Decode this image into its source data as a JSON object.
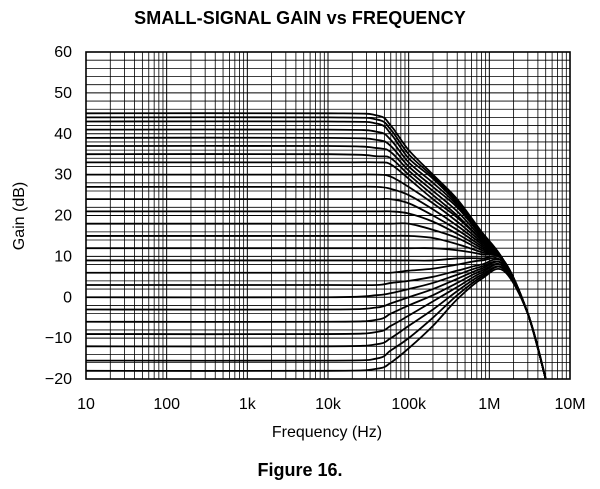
{
  "chart_data": {
    "type": "line",
    "title": "SMALL-SIGNAL GAIN vs FREQUENCY",
    "caption": "Figure 16.",
    "xlabel": "Frequency (Hz)",
    "ylabel": "Gain (dB)",
    "x_scale": "log",
    "xlim": [
      10,
      10000000
    ],
    "ylim": [
      -20,
      60
    ],
    "x_ticks": [
      {
        "value": 10,
        "label": "10"
      },
      {
        "value": 100,
        "label": "100"
      },
      {
        "value": 1000,
        "label": "1k"
      },
      {
        "value": 10000,
        "label": "10k"
      },
      {
        "value": 100000,
        "label": "100k"
      },
      {
        "value": 1000000,
        "label": "1M"
      },
      {
        "value": 10000000,
        "label": "10M"
      }
    ],
    "y_ticks": [
      {
        "value": 60,
        "label": "60"
      },
      {
        "value": 50,
        "label": "50"
      },
      {
        "value": 40,
        "label": "40"
      },
      {
        "value": 30,
        "label": "30"
      },
      {
        "value": 20,
        "label": "20"
      },
      {
        "value": 10,
        "label": "10"
      },
      {
        "value": 0,
        "label": "0"
      },
      {
        "value": -10,
        "label": "−10"
      },
      {
        "value": -20,
        "label": "−20"
      }
    ],
    "grid": true,
    "series": [
      {
        "x": [
          10,
          10000,
          40000,
          60000,
          100000,
          200000,
          400000,
          800000,
          1500000,
          3000000,
          5000000
        ],
        "y": [
          45,
          45,
          44.5,
          42,
          36,
          30,
          24,
          16,
          9,
          -4,
          -20
        ]
      },
      {
        "x": [
          10,
          10000,
          40000,
          60000,
          100000,
          200000,
          400000,
          800000,
          1500000,
          3000000,
          5000000
        ],
        "y": [
          44,
          44,
          43.5,
          41,
          35,
          29.5,
          23.5,
          16,
          9,
          -4,
          -20
        ]
      },
      {
        "x": [
          10,
          10000,
          40000,
          60000,
          100000,
          200000,
          400000,
          800000,
          1500000,
          3000000,
          5000000
        ],
        "y": [
          43,
          43,
          42.5,
          40,
          34,
          29,
          23,
          15.5,
          9,
          -4,
          -20
        ]
      },
      {
        "x": [
          10,
          10000,
          40000,
          60000,
          100000,
          200000,
          400000,
          800000,
          1500000,
          3000000,
          5000000
        ],
        "y": [
          41,
          41,
          40.5,
          38.5,
          33,
          28,
          22.5,
          15,
          9,
          -4,
          -20
        ]
      },
      {
        "x": [
          10,
          10000,
          40000,
          60000,
          100000,
          200000,
          400000,
          800000,
          1500000,
          3000000,
          5000000
        ],
        "y": [
          39,
          39,
          38.5,
          37,
          32,
          27,
          22,
          15,
          9,
          -4,
          -20
        ]
      },
      {
        "x": [
          10,
          10000,
          40000,
          60000,
          100000,
          200000,
          400000,
          800000,
          1500000,
          3000000,
          5000000
        ],
        "y": [
          37,
          37,
          36.5,
          35.5,
          31,
          26,
          21,
          14.5,
          9,
          -4,
          -20
        ]
      },
      {
        "x": [
          10,
          10000,
          40000,
          60000,
          100000,
          200000,
          400000,
          800000,
          1500000,
          3000000,
          5000000
        ],
        "y": [
          35,
          35,
          34.5,
          34,
          30,
          25,
          20,
          14,
          9,
          -4,
          -20
        ]
      },
      {
        "x": [
          10,
          10000,
          40000,
          60000,
          100000,
          200000,
          400000,
          800000,
          1500000,
          3000000,
          5000000
        ],
        "y": [
          33,
          33,
          33,
          32.5,
          29,
          24,
          19.5,
          14,
          9,
          -4,
          -20
        ]
      },
      {
        "x": [
          10,
          10000,
          40000,
          60000,
          100000,
          200000,
          400000,
          800000,
          1500000,
          3000000,
          5000000
        ],
        "y": [
          30,
          30,
          30,
          29.5,
          27,
          23,
          18.5,
          13.5,
          9,
          -4,
          -20
        ]
      },
      {
        "x": [
          10,
          10000,
          40000,
          60000,
          100000,
          200000,
          400000,
          800000,
          1500000,
          3000000,
          5000000
        ],
        "y": [
          27,
          27,
          27,
          26.5,
          25,
          21.5,
          17.5,
          13,
          9,
          -4,
          -20
        ]
      },
      {
        "x": [
          10,
          10000,
          40000,
          60000,
          100000,
          200000,
          400000,
          800000,
          1500000,
          3000000,
          5000000
        ],
        "y": [
          24,
          24,
          24,
          24,
          23,
          20,
          16.5,
          12.5,
          9,
          -4,
          -20
        ]
      },
      {
        "x": [
          10,
          10000,
          40000,
          60000,
          100000,
          200000,
          400000,
          800000,
          1500000,
          3000000,
          5000000
        ],
        "y": [
          21,
          21,
          21,
          21,
          20.5,
          18.5,
          15.5,
          12,
          9,
          -4,
          -20
        ]
      },
      {
        "x": [
          10,
          10000,
          40000,
          60000,
          100000,
          200000,
          400000,
          800000,
          1500000,
          3000000,
          5000000
        ],
        "y": [
          18,
          18,
          18,
          18,
          18,
          16.5,
          14.5,
          11.5,
          9,
          -4,
          -20
        ]
      },
      {
        "x": [
          10,
          10000,
          40000,
          60000,
          100000,
          200000,
          400000,
          800000,
          1500000,
          3000000,
          5000000
        ],
        "y": [
          15,
          15,
          15,
          15,
          15,
          14.5,
          13,
          11,
          9,
          -4,
          -20
        ]
      },
      {
        "x": [
          10,
          10000,
          40000,
          60000,
          100000,
          200000,
          400000,
          800000,
          1500000,
          3000000,
          5000000
        ],
        "y": [
          12,
          12,
          12,
          12,
          12,
          12,
          11.5,
          10.5,
          9,
          -4,
          -20
        ]
      },
      {
        "x": [
          10,
          10000,
          40000,
          60000,
          100000,
          200000,
          400000,
          800000,
          1500000,
          3000000,
          5000000
        ],
        "y": [
          9,
          9,
          9,
          9,
          9,
          9,
          9.5,
          9.5,
          9,
          -4,
          -20
        ]
      },
      {
        "x": [
          10,
          10000,
          40000,
          60000,
          100000,
          200000,
          400000,
          800000,
          1500000,
          3000000,
          5000000
        ],
        "y": [
          6,
          6,
          6,
          6,
          6.5,
          7,
          8,
          9,
          8.5,
          -4,
          -20
        ]
      },
      {
        "x": [
          10,
          10000,
          40000,
          60000,
          100000,
          200000,
          400000,
          800000,
          1500000,
          3000000,
          5000000
        ],
        "y": [
          3,
          3,
          3,
          3.5,
          4,
          5,
          6.5,
          8,
          8.5,
          -4,
          -20
        ]
      },
      {
        "x": [
          10,
          10000,
          40000,
          60000,
          100000,
          200000,
          400000,
          800000,
          1500000,
          3000000,
          5000000
        ],
        "y": [
          0,
          0,
          0.5,
          1,
          2,
          3.5,
          5.5,
          7.5,
          8,
          -4,
          -20
        ]
      },
      {
        "x": [
          10,
          10000,
          40000,
          60000,
          100000,
          200000,
          400000,
          800000,
          1500000,
          3000000,
          5000000
        ],
        "y": [
          -3,
          -3,
          -2.5,
          -1.5,
          0,
          2,
          4.5,
          7,
          8,
          -4,
          -20
        ]
      },
      {
        "x": [
          10,
          10000,
          40000,
          60000,
          100000,
          200000,
          400000,
          800000,
          1500000,
          3000000,
          5000000
        ],
        "y": [
          -6,
          -6,
          -5.5,
          -4,
          -2,
          0.5,
          3.5,
          6.5,
          7.5,
          -4,
          -20
        ]
      },
      {
        "x": [
          10,
          10000,
          40000,
          60000,
          100000,
          200000,
          400000,
          800000,
          1500000,
          3000000,
          5000000
        ],
        "y": [
          -9,
          -9,
          -8.5,
          -7,
          -4.5,
          -1,
          2.5,
          6,
          7.5,
          -4,
          -20
        ]
      },
      {
        "x": [
          10,
          10000,
          40000,
          60000,
          100000,
          200000,
          400000,
          800000,
          1500000,
          3000000,
          5000000
        ],
        "y": [
          -12,
          -12,
          -11.5,
          -10,
          -7,
          -3,
          1.5,
          5.5,
          7,
          -4,
          -20
        ]
      },
      {
        "x": [
          10,
          10000,
          40000,
          60000,
          100000,
          200000,
          400000,
          800000,
          1500000,
          3000000,
          5000000
        ],
        "y": [
          -15.5,
          -15.5,
          -15,
          -13,
          -10,
          -5,
          0.5,
          5,
          7,
          -4,
          -20
        ]
      },
      {
        "x": [
          10,
          10000,
          40000,
          60000,
          100000,
          200000,
          400000,
          800000,
          1500000,
          3000000,
          5000000
        ],
        "y": [
          -18,
          -18,
          -17.5,
          -16,
          -12.5,
          -7,
          -0.5,
          4.5,
          6.5,
          -4,
          -20
        ]
      }
    ]
  }
}
